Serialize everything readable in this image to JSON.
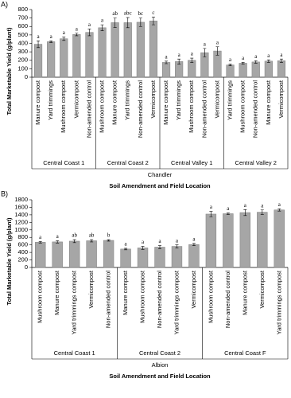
{
  "chart_data": [
    {
      "type": "bar",
      "panel_label": "A)",
      "subtitle": "Chandler",
      "x_label": "Soil Amendment and Field Location",
      "y_label": "Total Marketable Yield (g/plant)",
      "ylim": [
        0,
        800
      ],
      "yticks": [
        0,
        100,
        200,
        300,
        400,
        500,
        600,
        700,
        800
      ],
      "color": "#a6a6a6",
      "groups": [
        {
          "name": "Central Coast 1",
          "categories": [
            "Manure compost",
            "Yard trimmings",
            "Mushroom compost",
            "Vermicompost",
            "Non-amended control"
          ],
          "values": [
            390,
            420,
            455,
            505,
            530
          ],
          "errors": [
            40,
            10,
            20,
            15,
            40
          ],
          "letters": [
            "a",
            "a",
            "a",
            "a",
            "a"
          ]
        },
        {
          "name": "Central Coast 2",
          "categories": [
            "Mushroom compost",
            "Manure compost",
            "Yard trimmings",
            "Non-amended control",
            "Vermicompost"
          ],
          "values": [
            585,
            645,
            645,
            650,
            665
          ],
          "errors": [
            35,
            55,
            60,
            50,
            45
          ],
          "letters": [
            "a",
            "ab",
            "abc",
            "bc",
            "c"
          ]
        },
        {
          "name": "Central Valley 1",
          "categories": [
            "Manure compost",
            "Yard trimmings",
            "Mushroom compost",
            "Non-amended control",
            "Vermicompost"
          ],
          "values": [
            175,
            185,
            200,
            290,
            310
          ],
          "errors": [
            15,
            30,
            25,
            50,
            50
          ],
          "letters": [
            "a",
            "a",
            "a",
            "a",
            "a"
          ]
        },
        {
          "name": "Central Valley 2",
          "categories": [
            "Yard trimmings",
            "Mushroom compost",
            "Non-amended control",
            "Manure compost",
            "Vermicompost"
          ],
          "values": [
            145,
            165,
            180,
            190,
            195
          ],
          "errors": [
            10,
            10,
            15,
            15,
            20
          ],
          "letters": [
            "a",
            "a",
            "a",
            "a",
            "a"
          ]
        }
      ]
    },
    {
      "type": "bar",
      "panel_label": "B)",
      "subtitle": "Albion",
      "x_label": "Soil Amendment and Field Location",
      "y_label": "Total Marketable Yield (g/plant)",
      "ylim": [
        0,
        1800
      ],
      "yticks": [
        0,
        200,
        400,
        600,
        800,
        1000,
        1200,
        1400,
        1600,
        1800
      ],
      "color": "#a6a6a6",
      "groups": [
        {
          "name": "Central Coast 1",
          "categories": [
            "Mushroom compost",
            "Manure compost",
            "Yard trimmings compost",
            "Vermicompost",
            "Non-amended control"
          ],
          "values": [
            670,
            680,
            700,
            710,
            720
          ],
          "errors": [
            20,
            30,
            40,
            30,
            20
          ],
          "letters": [
            "a",
            "a",
            "ab",
            "ab",
            "b"
          ]
        },
        {
          "name": "Central Coast 2",
          "categories": [
            "Manure compost",
            "Mushroom compost",
            "Non-amended control",
            "Yard trimmings compost",
            "Vermicompost"
          ],
          "values": [
            490,
            520,
            540,
            560,
            610
          ],
          "errors": [
            20,
            40,
            40,
            40,
            30
          ],
          "letters": [
            "a",
            "a",
            "a",
            "a",
            "a"
          ]
        },
        {
          "name": "Central Coast F",
          "categories": [
            "Mushroom compost",
            "Non-amended control",
            "Manure compost",
            "Vermicompost",
            "Yard trimmings compost"
          ],
          "values": [
            1420,
            1430,
            1460,
            1470,
            1530
          ],
          "errors": [
            70,
            20,
            80,
            60,
            30
          ],
          "letters": [
            "a",
            "a",
            "a",
            "a",
            "a"
          ]
        }
      ]
    }
  ]
}
